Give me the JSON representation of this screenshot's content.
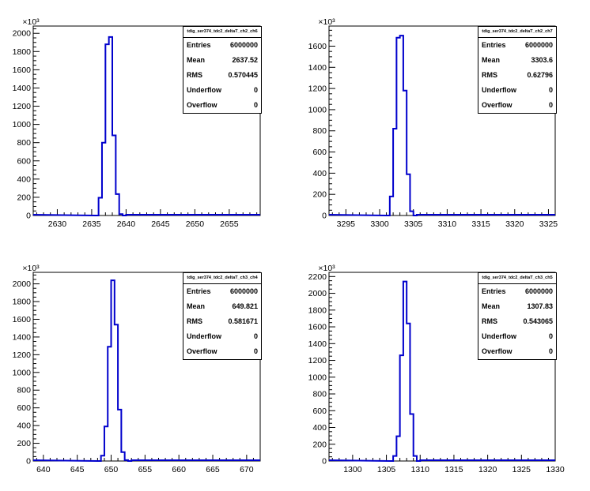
{
  "chart_data": [
    {
      "type": "bar",
      "style": "step-histogram",
      "color": "#0000cc",
      "exponent_label": "×10³",
      "xlim": [
        2626.5,
        2659.5
      ],
      "ylim": [
        0,
        2080
      ],
      "xticks": [
        2630,
        2635,
        2640,
        2645,
        2650,
        2655
      ],
      "yticks": [
        0,
        200,
        400,
        600,
        800,
        1000,
        1200,
        1400,
        1600,
        1800,
        2000
      ],
      "bins": [
        {
          "x0": 2635.5,
          "x1": 2636.0,
          "y": 0
        },
        {
          "x0": 2636.0,
          "x1": 2636.5,
          "y": 195
        },
        {
          "x0": 2636.5,
          "x1": 2637.0,
          "y": 800
        },
        {
          "x0": 2637.0,
          "x1": 2637.5,
          "y": 1880
        },
        {
          "x0": 2637.5,
          "x1": 2638.0,
          "y": 1960
        },
        {
          "x0": 2638.0,
          "x1": 2638.5,
          "y": 880
        },
        {
          "x0": 2638.5,
          "x1": 2639.0,
          "y": 235
        },
        {
          "x0": 2639.0,
          "x1": 2639.5,
          "y": 15
        },
        {
          "x0": 2639.5,
          "x1": 2640.0,
          "y": 0
        }
      ],
      "stats": {
        "title": "tdig_ser374_tdc2_deltaT_ch2_ch6",
        "rows": [
          {
            "label": "Entries",
            "value": "6000000"
          },
          {
            "label": "Mean",
            "value": "2637.52"
          },
          {
            "label": "RMS",
            "value": "0.570445"
          },
          {
            "label": "Underflow",
            "value": "0"
          },
          {
            "label": "Overflow",
            "value": "0"
          }
        ]
      }
    },
    {
      "type": "bar",
      "style": "step-histogram",
      "color": "#0000cc",
      "exponent_label": "×10³",
      "xlim": [
        3292.5,
        3326.0
      ],
      "ylim": [
        0,
        1790
      ],
      "xticks": [
        3295,
        3300,
        3305,
        3310,
        3315,
        3320,
        3325
      ],
      "yticks": [
        0,
        200,
        400,
        600,
        800,
        1000,
        1200,
        1400,
        1600
      ],
      "bins": [
        {
          "x0": 3301.0,
          "x1": 3301.5,
          "y": 0
        },
        {
          "x0": 3301.5,
          "x1": 3302.0,
          "y": 180
        },
        {
          "x0": 3302.0,
          "x1": 3302.5,
          "y": 820
        },
        {
          "x0": 3302.5,
          "x1": 3303.0,
          "y": 1680
        },
        {
          "x0": 3303.0,
          "x1": 3303.5,
          "y": 1700
        },
        {
          "x0": 3303.5,
          "x1": 3304.0,
          "y": 1180
        },
        {
          "x0": 3304.0,
          "x1": 3304.5,
          "y": 390
        },
        {
          "x0": 3304.5,
          "x1": 3305.0,
          "y": 40
        },
        {
          "x0": 3305.0,
          "x1": 3305.5,
          "y": 0
        }
      ],
      "stats": {
        "title": "tdig_ser374_tdc2_deltaT_ch2_ch7",
        "rows": [
          {
            "label": "Entries",
            "value": "6000000"
          },
          {
            "label": "Mean",
            "value": "3303.6"
          },
          {
            "label": "RMS",
            "value": "0.62796"
          },
          {
            "label": "Underflow",
            "value": "0"
          },
          {
            "label": "Overflow",
            "value": "0"
          }
        ]
      }
    },
    {
      "type": "bar",
      "style": "step-histogram",
      "color": "#0000cc",
      "exponent_label": "×10³",
      "xlim": [
        638.5,
        672.0
      ],
      "ylim": [
        0,
        2130
      ],
      "xticks": [
        640,
        645,
        650,
        655,
        660,
        665,
        670
      ],
      "yticks": [
        0,
        200,
        400,
        600,
        800,
        1000,
        1200,
        1400,
        1600,
        1800,
        2000
      ],
      "bins": [
        {
          "x0": 648.0,
          "x1": 648.5,
          "y": 0
        },
        {
          "x0": 648.5,
          "x1": 649.0,
          "y": 60
        },
        {
          "x0": 649.0,
          "x1": 649.5,
          "y": 390
        },
        {
          "x0": 649.5,
          "x1": 650.0,
          "y": 1290
        },
        {
          "x0": 650.0,
          "x1": 650.5,
          "y": 2040
        },
        {
          "x0": 650.5,
          "x1": 651.0,
          "y": 1540
        },
        {
          "x0": 651.0,
          "x1": 651.5,
          "y": 580
        },
        {
          "x0": 651.5,
          "x1": 652.0,
          "y": 100
        },
        {
          "x0": 652.0,
          "x1": 652.5,
          "y": 10
        },
        {
          "x0": 652.5,
          "x1": 653.0,
          "y": 0
        }
      ],
      "stats": {
        "title": "tdig_ser374_tdc2_deltaT_ch3_ch4",
        "rows": [
          {
            "label": "Entries",
            "value": "6000000"
          },
          {
            "label": "Mean",
            "value": "649.821"
          },
          {
            "label": "RMS",
            "value": "0.581671"
          },
          {
            "label": "Underflow",
            "value": "0"
          },
          {
            "label": "Overflow",
            "value": "0"
          }
        ]
      }
    },
    {
      "type": "bar",
      "style": "step-histogram",
      "color": "#0000cc",
      "exponent_label": "×10³",
      "xlim": [
        1296.5,
        1330.0
      ],
      "ylim": [
        0,
        2250
      ],
      "xticks": [
        1300,
        1305,
        1310,
        1315,
        1320,
        1325,
        1330
      ],
      "yticks": [
        0,
        200,
        400,
        600,
        800,
        1000,
        1200,
        1400,
        1600,
        1800,
        2000,
        2200
      ],
      "bins": [
        {
          "x0": 1305.5,
          "x1": 1306.0,
          "y": 0
        },
        {
          "x0": 1306.0,
          "x1": 1306.5,
          "y": 60
        },
        {
          "x0": 1306.5,
          "x1": 1307.0,
          "y": 295
        },
        {
          "x0": 1307.0,
          "x1": 1307.5,
          "y": 1260
        },
        {
          "x0": 1307.5,
          "x1": 1308.0,
          "y": 2140
        },
        {
          "x0": 1308.0,
          "x1": 1308.5,
          "y": 1640
        },
        {
          "x0": 1308.5,
          "x1": 1309.0,
          "y": 560
        },
        {
          "x0": 1309.0,
          "x1": 1309.5,
          "y": 60
        },
        {
          "x0": 1309.5,
          "x1": 1310.0,
          "y": 0
        }
      ],
      "stats": {
        "title": "tdig_ser374_tdc2_deltaT_ch3_ch5",
        "rows": [
          {
            "label": "Entries",
            "value": "6000000"
          },
          {
            "label": "Mean",
            "value": "1307.83"
          },
          {
            "label": "RMS",
            "value": "0.543065"
          },
          {
            "label": "Underflow",
            "value": "0"
          },
          {
            "label": "Overflow",
            "value": "0"
          }
        ]
      }
    }
  ]
}
